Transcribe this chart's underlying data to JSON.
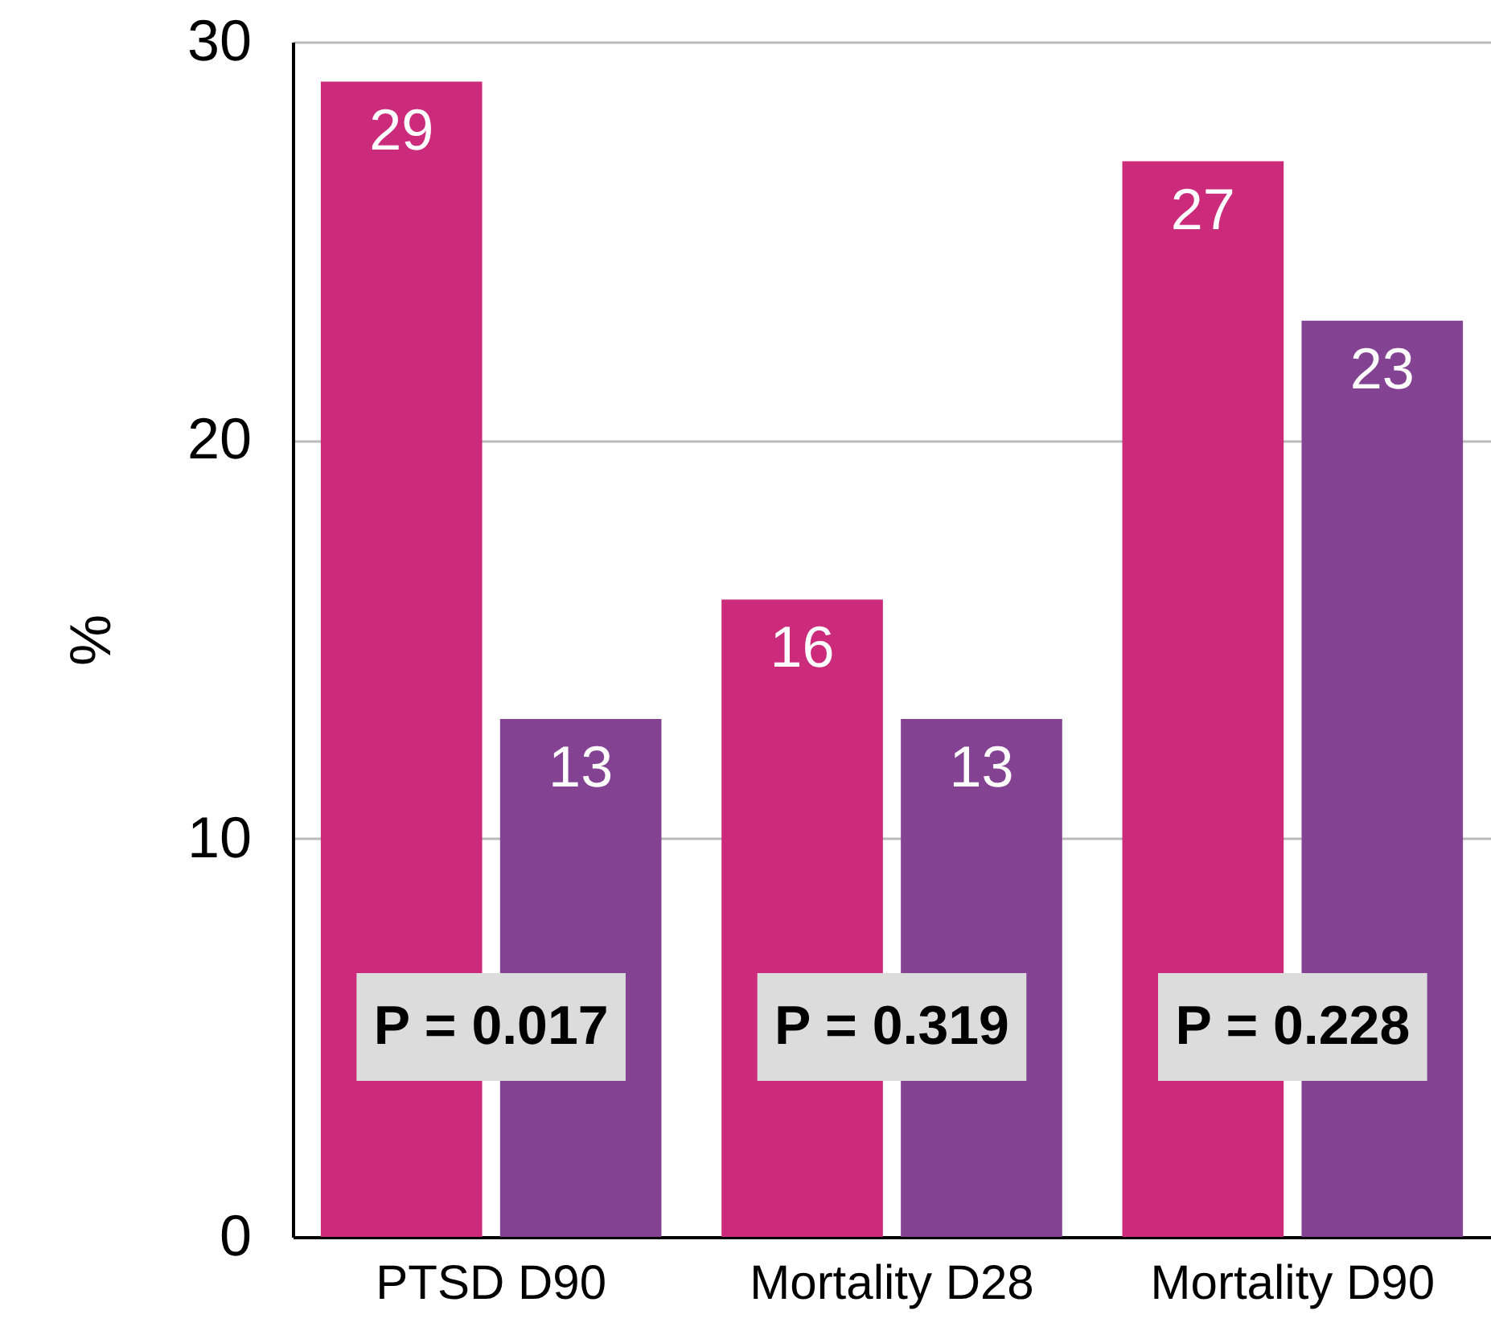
{
  "chart_data": {
    "type": "bar",
    "ylabel": "%",
    "categories": [
      "PTSD D90",
      "Mortality D28",
      "Mortality D90"
    ],
    "series": [
      {
        "color": "#cc2a7a",
        "values": [
          29,
          16,
          27
        ]
      },
      {
        "color": "#844392",
        "values": [
          13,
          13,
          23
        ]
      }
    ],
    "ylim": [
      0,
      30
    ],
    "yticks": [
      0,
      10,
      20,
      30
    ],
    "grid": "y",
    "data_labels": true,
    "annotations": [
      "P = 0.017",
      "P = 0.319",
      "P = 0.228"
    ]
  }
}
